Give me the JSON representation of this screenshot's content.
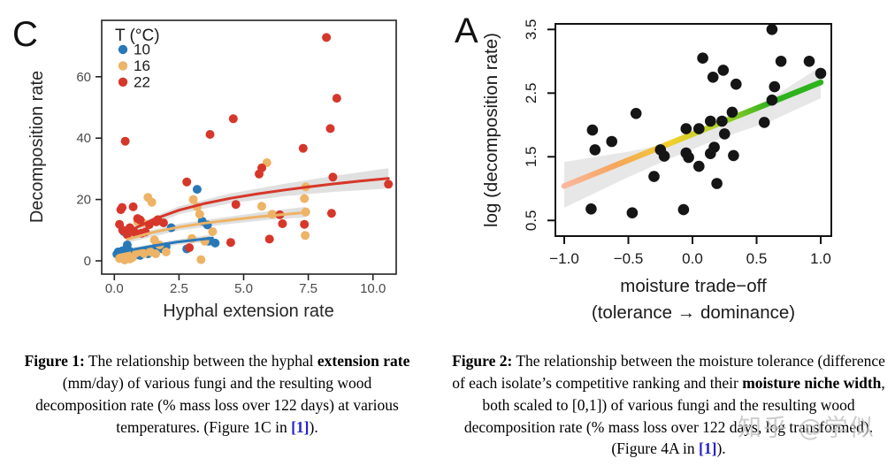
{
  "watermark": {
    "text": "知乎 @学似"
  },
  "figures": {
    "figure1": {
      "panel_label": "C",
      "caption_segments": [
        {
          "t": "Figure 1:",
          "b": true
        },
        {
          "t": " The relationship between the hyphal "
        },
        {
          "t": "extension rate",
          "b": true
        },
        {
          "t": " (mm/day) of various fungi and the resulting wood decomposition rate (% mass loss over 122 days) at various temperatures. (Figure 1C in "
        },
        {
          "t": "[1]",
          "link": true
        },
        {
          "t": ")."
        }
      ]
    },
    "figure2": {
      "panel_label": "A",
      "caption_segments": [
        {
          "t": "Figure 2:",
          "b": true
        },
        {
          "t": " The relationship between the moisture tolerance (difference of each isolate’s competitive ranking and their "
        },
        {
          "t": "moisture niche width",
          "b": true
        },
        {
          "t": ", both scaled to [0,1]) of various fungi and the resulting wood decomposition rate (% mass loss over 122 days, log transformed). (Figure 4A in "
        },
        {
          "t": "[1]",
          "link": true
        },
        {
          "t": ")."
        }
      ]
    }
  },
  "chart_data": [
    {
      "type": "scatter",
      "panel": "C",
      "title": "",
      "xlabel": "Hyphal extension rate",
      "ylabel": "Decomposition rate",
      "xlim": [
        -0.5,
        10.9
      ],
      "ylim": [
        -4,
        78
      ],
      "xticks": [
        0,
        2.5,
        5,
        7.5,
        10
      ],
      "xtick_labels": [
        "0.0",
        "2.5",
        "5.0",
        "7.5",
        "10.0"
      ],
      "yticks": [
        0,
        20,
        40,
        60
      ],
      "ytick_labels": [
        "0",
        "20",
        "40",
        "60"
      ],
      "grid": false,
      "legend": {
        "title": "T (°C)",
        "position": "top-left",
        "items": [
          {
            "label": "10",
            "color": "#2878b8"
          },
          {
            "label": "16",
            "color": "#edb366"
          },
          {
            "label": "22",
            "color": "#d6372a"
          }
        ]
      },
      "band_color": "#cccccc",
      "series": [
        {
          "name": "10",
          "color": "#2878b8",
          "points": [
            [
              0.1,
              2.2
            ],
            [
              0.15,
              2.9
            ],
            [
              0.2,
              2.0
            ],
            [
              0.3,
              2.5
            ],
            [
              0.32,
              3.3
            ],
            [
              0.37,
              9.5
            ],
            [
              0.4,
              1.8
            ],
            [
              0.45,
              2.7
            ],
            [
              0.5,
              5.2
            ],
            [
              0.55,
              2.1
            ],
            [
              0.6,
              3.1
            ],
            [
              0.7,
              2.4
            ],
            [
              0.8,
              2.3
            ],
            [
              0.9,
              2.0
            ],
            [
              1.0,
              1.8
            ],
            [
              1.1,
              2.8
            ],
            [
              1.2,
              2.6
            ],
            [
              1.3,
              2.3
            ],
            [
              1.45,
              3.5
            ],
            [
              1.6,
              4.3
            ],
            [
              1.85,
              3.9
            ],
            [
              2.0,
              4.6
            ],
            [
              2.2,
              10.8
            ],
            [
              2.8,
              3.9
            ],
            [
              3.2,
              23.3
            ],
            [
              3.4,
              12.9
            ],
            [
              3.6,
              11.7
            ],
            [
              3.65,
              6.4
            ],
            [
              3.9,
              5.8
            ]
          ]
        },
        {
          "name": "16",
          "color": "#edb366",
          "points": [
            [
              0.2,
              0.8
            ],
            [
              0.3,
              1.5
            ],
            [
              0.4,
              0.3
            ],
            [
              0.5,
              2.2
            ],
            [
              0.6,
              0.6
            ],
            [
              0.7,
              1.1
            ],
            [
              0.85,
              2.6
            ],
            [
              0.9,
              12.7
            ],
            [
              1.0,
              3.0
            ],
            [
              1.1,
              12.4
            ],
            [
              1.15,
              2.4
            ],
            [
              1.3,
              20.7
            ],
            [
              1.45,
              19.1
            ],
            [
              1.4,
              2.9
            ],
            [
              1.55,
              6.8
            ],
            [
              1.6,
              2.3
            ],
            [
              1.75,
              5.2
            ],
            [
              2.0,
              2.9
            ],
            [
              3.0,
              7.3
            ],
            [
              3.05,
              20.0
            ],
            [
              3.2,
              17.6
            ],
            [
              3.3,
              15.2
            ],
            [
              3.35,
              0.4
            ],
            [
              3.5,
              6.4
            ],
            [
              3.8,
              9.5
            ],
            [
              5.7,
              17.8
            ],
            [
              5.9,
              32.0
            ],
            [
              6.1,
              15.2
            ],
            [
              7.35,
              20.3
            ],
            [
              7.4,
              24.1
            ],
            [
              7.4,
              15.9
            ],
            [
              7.38,
              8.3
            ]
          ]
        },
        {
          "name": "22",
          "color": "#d6372a",
          "points": [
            [
              0.2,
              11.9
            ],
            [
              0.25,
              16.7
            ],
            [
              0.3,
              17.4
            ],
            [
              0.32,
              10.0
            ],
            [
              0.42,
              39.0
            ],
            [
              0.5,
              8.5
            ],
            [
              0.6,
              10.8
            ],
            [
              0.73,
              17.6
            ],
            [
              0.8,
              9.2
            ],
            [
              0.9,
              13.8
            ],
            [
              1.0,
              13.3
            ],
            [
              1.05,
              9.0
            ],
            [
              1.2,
              9.4
            ],
            [
              1.35,
              11.8
            ],
            [
              1.62,
              12.7
            ],
            [
              1.68,
              13.4
            ],
            [
              1.9,
              12.4
            ],
            [
              2.8,
              25.7
            ],
            [
              2.9,
              4.3
            ],
            [
              3.7,
              41.2
            ],
            [
              4.5,
              6.0
            ],
            [
              4.6,
              46.3
            ],
            [
              4.7,
              18.4
            ],
            [
              5.6,
              28.3
            ],
            [
              5.7,
              30.3
            ],
            [
              6.0,
              7.1
            ],
            [
              6.4,
              15.0
            ],
            [
              6.5,
              12.1
            ],
            [
              7.3,
              36.7
            ],
            [
              7.35,
              11.9
            ],
            [
              8.2,
              72.8
            ],
            [
              8.35,
              43.1
            ],
            [
              8.4,
              15.5
            ],
            [
              8.45,
              27.3
            ],
            [
              8.6,
              53.0
            ],
            [
              10.6,
              25.0
            ]
          ]
        }
      ],
      "trends": [
        {
          "series": "10",
          "color": "#2878b8",
          "line": [
            [
              0.15,
              2.7
            ],
            [
              0.8,
              3.8
            ],
            [
              1.6,
              5.0
            ],
            [
              2.4,
              6.1
            ],
            [
              3.2,
              6.9
            ],
            [
              3.8,
              7.4
            ]
          ],
          "band": [
            [
              0.15,
              1.9,
              3.5
            ],
            [
              1.5,
              4.1,
              5.6
            ],
            [
              2.5,
              5.3,
              7.1
            ],
            [
              3.8,
              6.3,
              8.6
            ]
          ]
        },
        {
          "series": "16",
          "color": "#edb366",
          "line": [
            [
              0.5,
              7.0
            ],
            [
              1.5,
              9.3
            ],
            [
              2.5,
              11.0
            ],
            [
              3.5,
              12.3
            ],
            [
              4.5,
              13.3
            ],
            [
              5.5,
              14.3
            ],
            [
              6.5,
              15.1
            ],
            [
              7.4,
              15.8
            ]
          ],
          "band": [
            [
              0.5,
              5.9,
              8.1
            ],
            [
              2.5,
              9.9,
              12.1
            ],
            [
              4.5,
              12.1,
              14.5
            ],
            [
              6.0,
              13.4,
              16.2
            ],
            [
              7.4,
              14.2,
              17.6
            ]
          ]
        },
        {
          "series": "22",
          "color": "#d6372a",
          "line": [
            [
              0.4,
              9.0
            ],
            [
              1.5,
              13.5
            ],
            [
              2.5,
              16.5
            ],
            [
              3.5,
              18.7
            ],
            [
              4.5,
              20.4
            ],
            [
              5.5,
              21.8
            ],
            [
              6.5,
              23.0
            ],
            [
              7.5,
              24.1
            ],
            [
              8.5,
              25.1
            ],
            [
              9.5,
              26.0
            ],
            [
              10.6,
              26.9
            ]
          ],
          "band": [
            [
              0.4,
              7.6,
              10.4
            ],
            [
              2.5,
              15.2,
              17.8
            ],
            [
              4.5,
              18.8,
              22.0
            ],
            [
              6.5,
              21.0,
              25.0
            ],
            [
              8.5,
              22.5,
              27.7
            ],
            [
              10.6,
              23.6,
              30.2
            ]
          ]
        }
      ]
    },
    {
      "type": "scatter",
      "panel": "A",
      "title": "",
      "xlabel": "moisture trade−off",
      "xlabel2": "(tolerance → dominance)",
      "ylabel": "log (decomposition rate)",
      "xlim": [
        -1.07,
        1.08
      ],
      "ylim": [
        0.25,
        3.6
      ],
      "xticks": [
        -1,
        -0.5,
        0,
        0.5,
        1
      ],
      "xtick_labels": [
        "−1.0",
        "−0.5",
        "0.0",
        "0.5",
        "1.0"
      ],
      "yticks": [
        0.5,
        1.5,
        2.5,
        3.5
      ],
      "ytick_labels": [
        "0.5",
        "1.5",
        "2.5",
        "3.5"
      ],
      "grid": false,
      "point_color": "#151515",
      "points": [
        [
          0.62,
          3.5
        ],
        [
          0.08,
          3.05
        ],
        [
          0.69,
          3.0
        ],
        [
          0.91,
          3.0
        ],
        [
          0.24,
          2.86
        ],
        [
          0.16,
          2.75
        ],
        [
          0.34,
          2.64
        ],
        [
          1.0,
          2.81
        ],
        [
          0.64,
          2.6
        ],
        [
          0.62,
          2.39
        ],
        [
          -0.44,
          2.18
        ],
        [
          0.31,
          2.2
        ],
        [
          0.14,
          2.06
        ],
        [
          0.23,
          2.06
        ],
        [
          0.56,
          2.04
        ],
        [
          -0.05,
          1.94
        ],
        [
          0.05,
          1.94
        ],
        [
          0.25,
          1.86
        ],
        [
          -0.78,
          1.92
        ],
        [
          -0.63,
          1.74
        ],
        [
          -0.76,
          1.61
        ],
        [
          -0.25,
          1.61
        ],
        [
          -0.22,
          1.51
        ],
        [
          -0.05,
          1.56
        ],
        [
          -0.03,
          1.49
        ],
        [
          0.17,
          1.65
        ],
        [
          0.14,
          1.55
        ],
        [
          0.32,
          1.52
        ],
        [
          0.05,
          1.35
        ],
        [
          -0.3,
          1.19
        ],
        [
          0.19,
          1.08
        ],
        [
          -0.79,
          0.68
        ],
        [
          -0.47,
          0.62
        ],
        [
          -0.07,
          0.67
        ]
      ],
      "trend": {
        "line": [
          [
            -1.0,
            1.04
          ],
          [
            1.0,
            2.67
          ]
        ],
        "band": [
          [
            -1.0,
            0.7,
            1.42
          ],
          [
            -0.5,
            1.18,
            1.58
          ],
          [
            -0.2,
            1.45,
            1.7
          ],
          [
            0.1,
            1.7,
            1.92
          ],
          [
            0.35,
            1.88,
            2.08
          ],
          [
            0.6,
            2.05,
            2.4
          ],
          [
            1.0,
            2.42,
            2.92
          ]
        ],
        "band_color": "#e3e3e3",
        "gradient": [
          {
            "o": 0,
            "c": "#f9b8a0"
          },
          {
            "o": 0.2,
            "c": "#f6a55c"
          },
          {
            "o": 0.42,
            "c": "#f1cf2b"
          },
          {
            "o": 0.58,
            "c": "#b5d42a"
          },
          {
            "o": 0.8,
            "c": "#2fb31c"
          },
          {
            "o": 1,
            "c": "#2db31e"
          }
        ]
      }
    }
  ]
}
